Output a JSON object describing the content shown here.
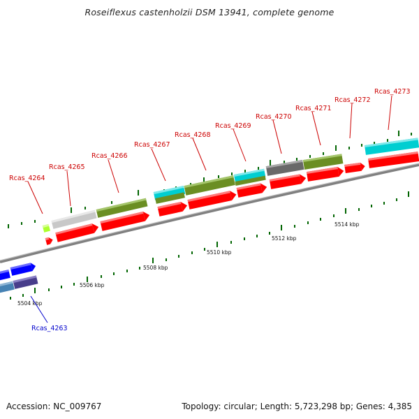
{
  "title": "Roseiflexus castenholzii DSM 13941, complete genome",
  "footer": {
    "accession": "Accession: NC_009767",
    "topology": "Topology: circular; Length: 5,723,298 bp; Genes: 4,385"
  },
  "position_labels": [
    "5504 kbp",
    "5506 kbp",
    "5508 kbp",
    "5510 kbp",
    "5512 kbp",
    "5514 kbp"
  ],
  "gene_labels": [
    "Rcas_4263",
    "Rcas_4264",
    "Rcas_4265",
    "Rcas_4266",
    "Rcas_4267",
    "Rcas_4268",
    "Rcas_4269",
    "Rcas_4270",
    "Rcas_4271",
    "Rcas_4272",
    "Rcas_4273"
  ],
  "colors": {
    "cds": "#ff0000",
    "olive": "#6b8e23",
    "cyan": "#00ced1",
    "grey": "#c8c8c8",
    "darkgrey": "#696969",
    "lime": "#adff2f",
    "blue": "#0000ff",
    "steelblue": "#4682b4",
    "darkslateblue": "#483d8b",
    "label_red": "#cc0000",
    "label_blue": "#0000cc",
    "tick": "#006400"
  }
}
